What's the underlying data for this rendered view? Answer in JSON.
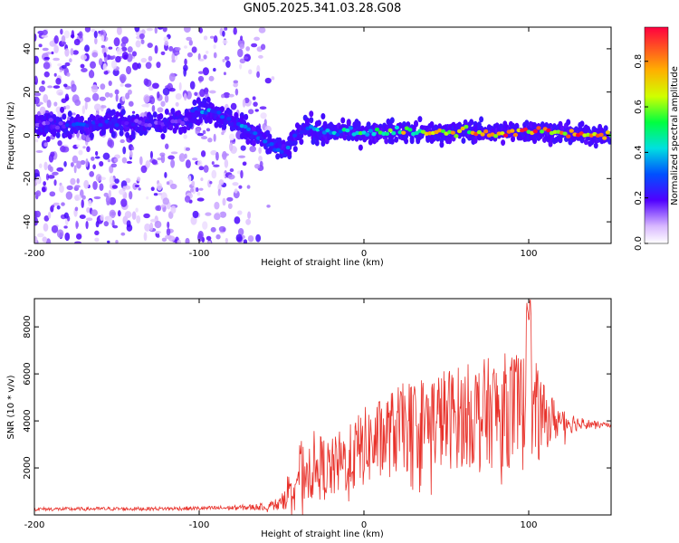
{
  "figure_title": "GN05.2025.341.03.28.G08",
  "chart_data": [
    {
      "type": "heatmap",
      "description_of": "top panel",
      "xlabel": "Height of straight line (km)",
      "ylabel": "Frequency (Hz)",
      "xlim": [
        -200,
        150
      ],
      "ylim": [
        -50,
        50
      ],
      "xticks": [
        -200,
        -100,
        0,
        100
      ],
      "yticks": [
        -40,
        -20,
        0,
        20,
        40
      ],
      "colorbar": {
        "label": "Normalized spectral amplitude",
        "range": [
          0,
          0.95
        ],
        "ticks": [
          0,
          0.2,
          0.4,
          0.6,
          0.8
        ],
        "colormap": "rainbow"
      },
      "ridge": [
        {
          "x": -200,
          "y": 5,
          "amp": 0.15
        },
        {
          "x": -170,
          "y": 5,
          "amp": 0.3
        },
        {
          "x": -150,
          "y": 6,
          "amp": 0.25
        },
        {
          "x": -130,
          "y": 5,
          "amp": 0.2
        },
        {
          "x": -110,
          "y": 6,
          "amp": 0.2
        },
        {
          "x": -103,
          "y": 12,
          "amp": 0.35
        },
        {
          "x": -92,
          "y": 11,
          "amp": 0.35
        },
        {
          "x": -85,
          "y": 8,
          "amp": 0.3
        },
        {
          "x": -75,
          "y": 5,
          "amp": 0.35
        },
        {
          "x": -65,
          "y": 0,
          "amp": 0.35
        },
        {
          "x": -55,
          "y": -5,
          "amp": 0.35
        },
        {
          "x": -48,
          "y": -8,
          "amp": 0.35
        },
        {
          "x": -42,
          "y": -2,
          "amp": 0.3
        },
        {
          "x": -35,
          "y": 4,
          "amp": 0.35
        },
        {
          "x": -25,
          "y": 1,
          "amp": 0.45
        },
        {
          "x": -10,
          "y": 2,
          "amp": 0.5
        },
        {
          "x": 0,
          "y": 1,
          "amp": 0.55
        },
        {
          "x": 20,
          "y": 2,
          "amp": 0.7
        },
        {
          "x": 40,
          "y": 1,
          "amp": 0.75
        },
        {
          "x": 60,
          "y": 2,
          "amp": 0.8
        },
        {
          "x": 80,
          "y": 1,
          "amp": 0.85
        },
        {
          "x": 100,
          "y": 2,
          "amp": 0.9
        },
        {
          "x": 120,
          "y": 1,
          "amp": 0.9
        },
        {
          "x": 150,
          "y": 0,
          "amp": 0.9
        }
      ]
    },
    {
      "type": "line",
      "description_of": "bottom panel",
      "xlabel": "Height of straight line (km)",
      "ylabel": "SNR (10 * v/v)",
      "xlim": [
        -200,
        150
      ],
      "ylim": [
        0,
        9200
      ],
      "xticks": [
        -200,
        -100,
        0,
        100
      ],
      "yticks": [
        2000,
        4000,
        6000,
        8000
      ],
      "color": "#e8312a",
      "series": [
        {
          "name": "SNR",
          "x": [
            -200,
            -180,
            -160,
            -140,
            -120,
            -100,
            -80,
            -60,
            -50,
            -45,
            -40,
            -35,
            -30,
            -25,
            -20,
            -15,
            -10,
            -5,
            0,
            5,
            10,
            20,
            30,
            40,
            50,
            60,
            70,
            80,
            90,
            95,
            100,
            105,
            110,
            120,
            130,
            140,
            150
          ],
          "mean": [
            250,
            250,
            260,
            260,
            270,
            280,
            300,
            350,
            500,
            1200,
            1800,
            1900,
            2100,
            2000,
            1900,
            2200,
            2300,
            2600,
            2900,
            3000,
            3200,
            3600,
            3800,
            4000,
            4100,
            4200,
            4300,
            4400,
            4500,
            4400,
            4300,
            4200,
            4100,
            4000,
            3900,
            3850,
            3800
          ],
          "spread": [
            80,
            80,
            80,
            80,
            80,
            90,
            100,
            150,
            300,
            900,
            1300,
            1400,
            1500,
            1400,
            1300,
            1400,
            1400,
            1600,
            1700,
            1700,
            1800,
            1900,
            2000,
            2100,
            2200,
            2200,
            2300,
            2400,
            2500,
            2600,
            2700,
            2200,
            1300,
            700,
            300,
            150,
            100
          ]
        }
      ],
      "peak": {
        "x": 100,
        "y": 9200
      }
    }
  ]
}
